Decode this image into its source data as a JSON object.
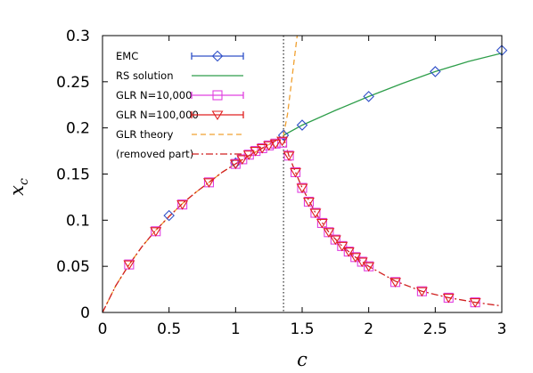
{
  "chart_data": {
    "type": "line",
    "xlabel": "c",
    "ylabel": "x",
    "ylabel_sub": "c",
    "xlim": [
      0,
      3
    ],
    "ylim": [
      0,
      0.3
    ],
    "xticks": [
      "0",
      "0.5",
      "1",
      "1.5",
      "2",
      "2.5",
      "3"
    ],
    "yticks": [
      "0",
      "0.05",
      "0.1",
      "0.15",
      "0.2",
      "0.25",
      "0.3"
    ],
    "grid": false,
    "legend_position": "top-left",
    "vline_x": 1.36,
    "series": [
      {
        "name": "EMC",
        "style": "points",
        "marker": "diamond",
        "color": "#3050c8",
        "x": [
          0.5,
          1.0,
          1.36,
          1.5,
          2.0,
          2.5,
          3.0
        ],
        "y": [
          0.105,
          0.162,
          0.192,
          0.203,
          0.234,
          0.261,
          0.284
        ]
      },
      {
        "name": "RS solution",
        "style": "line",
        "color": "#2e9e4a",
        "x": [
          1.36,
          1.5,
          1.75,
          2.0,
          2.25,
          2.5,
          2.75,
          3.0
        ],
        "y": [
          0.192,
          0.203,
          0.219,
          0.234,
          0.248,
          0.261,
          0.272,
          0.281
        ]
      },
      {
        "name": "GLR  N=10,000",
        "style": "points",
        "marker": "square",
        "color": "#e040e0",
        "x": [
          0.2,
          0.4,
          0.6,
          0.8,
          1.0,
          1.05,
          1.1,
          1.15,
          1.2,
          1.25,
          1.3,
          1.35,
          1.4,
          1.45,
          1.5,
          1.55,
          1.6,
          1.65,
          1.7,
          1.75,
          1.8,
          1.85,
          1.9,
          1.95,
          2.0,
          2.2,
          2.4,
          2.6,
          2.8
        ],
        "y": [
          0.052,
          0.088,
          0.117,
          0.141,
          0.161,
          0.166,
          0.171,
          0.175,
          0.178,
          0.181,
          0.183,
          0.184,
          0.17,
          0.152,
          0.135,
          0.12,
          0.108,
          0.097,
          0.087,
          0.079,
          0.072,
          0.066,
          0.06,
          0.055,
          0.05,
          0.033,
          0.023,
          0.016,
          0.011
        ]
      },
      {
        "name": "GLR N=100,000",
        "style": "points",
        "marker": "triangle-down",
        "color": "#e02020",
        "x": [
          0.2,
          0.4,
          0.6,
          0.8,
          1.0,
          1.05,
          1.1,
          1.15,
          1.2,
          1.25,
          1.3,
          1.35,
          1.4,
          1.45,
          1.5,
          1.55,
          1.6,
          1.65,
          1.7,
          1.75,
          1.8,
          1.85,
          1.9,
          1.95,
          2.0,
          2.2,
          2.4,
          2.6,
          2.8
        ],
        "y": [
          0.052,
          0.088,
          0.117,
          0.141,
          0.161,
          0.166,
          0.171,
          0.175,
          0.178,
          0.181,
          0.183,
          0.186,
          0.17,
          0.152,
          0.135,
          0.12,
          0.108,
          0.097,
          0.087,
          0.079,
          0.072,
          0.066,
          0.06,
          0.055,
          0.05,
          0.033,
          0.023,
          0.016,
          0.011
        ]
      },
      {
        "name": "GLR    theory",
        "style": "dashed",
        "color": "#f0a030",
        "x": [
          0,
          0.1,
          0.2,
          0.3,
          0.4,
          0.5,
          0.6,
          0.7,
          0.8,
          0.9,
          1.0,
          1.1,
          1.2,
          1.3,
          1.36,
          1.39,
          1.42,
          1.45,
          1.48
        ],
        "y": [
          0,
          0.029,
          0.052,
          0.072,
          0.089,
          0.104,
          0.118,
          0.13,
          0.141,
          0.152,
          0.161,
          0.17,
          0.178,
          0.186,
          0.192,
          0.215,
          0.25,
          0.285,
          0.32
        ]
      },
      {
        "name": "(removed part)",
        "style": "dashdot",
        "color": "#d02020",
        "x": [
          0,
          0.1,
          0.2,
          0.3,
          0.4,
          0.5,
          0.6,
          0.7,
          0.8,
          0.9,
          1.0,
          1.1,
          1.2,
          1.3,
          1.36,
          1.4,
          1.45,
          1.5,
          1.6,
          1.7,
          1.8,
          1.9,
          2.0,
          2.2,
          2.4,
          2.6,
          2.8,
          3.0
        ],
        "y": [
          0,
          0.029,
          0.052,
          0.072,
          0.089,
          0.104,
          0.118,
          0.13,
          0.141,
          0.152,
          0.161,
          0.17,
          0.178,
          0.186,
          0.19,
          0.17,
          0.152,
          0.135,
          0.108,
          0.087,
          0.072,
          0.06,
          0.05,
          0.034,
          0.023,
          0.016,
          0.011,
          0.007
        ]
      }
    ]
  }
}
